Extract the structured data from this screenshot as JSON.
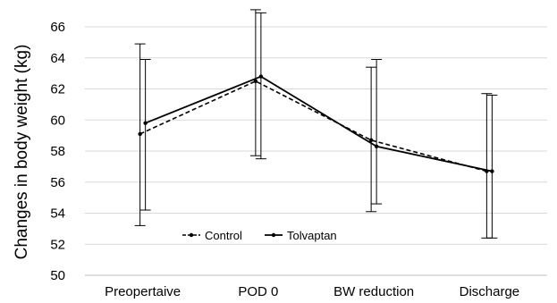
{
  "chart_data": {
    "type": "line",
    "title": "",
    "xlabel": "",
    "ylabel": "Changes in body weight (kg)",
    "categories": [
      "Preopertaive",
      "POD 0",
      "BW reduction",
      "Discharge"
    ],
    "ylim": [
      50,
      66
    ],
    "yticks": [
      50,
      52,
      54,
      56,
      58,
      60,
      62,
      64,
      66
    ],
    "grid": true,
    "legend_position": "bottom-left",
    "series": [
      {
        "name": "Control",
        "style": "dashed",
        "color": "#000000",
        "values": [
          59.1,
          62.5,
          58.7,
          56.7
        ],
        "error_low": [
          53.2,
          57.7,
          54.1,
          52.4
        ],
        "error_high": [
          64.9,
          67.1,
          63.4,
          61.7
        ]
      },
      {
        "name": "Tolvaptan",
        "style": "solid",
        "color": "#000000",
        "values": [
          59.8,
          62.8,
          58.3,
          56.7
        ],
        "error_low": [
          54.2,
          57.5,
          54.6,
          52.4
        ],
        "error_high": [
          63.9,
          66.9,
          63.9,
          61.6
        ]
      }
    ]
  }
}
